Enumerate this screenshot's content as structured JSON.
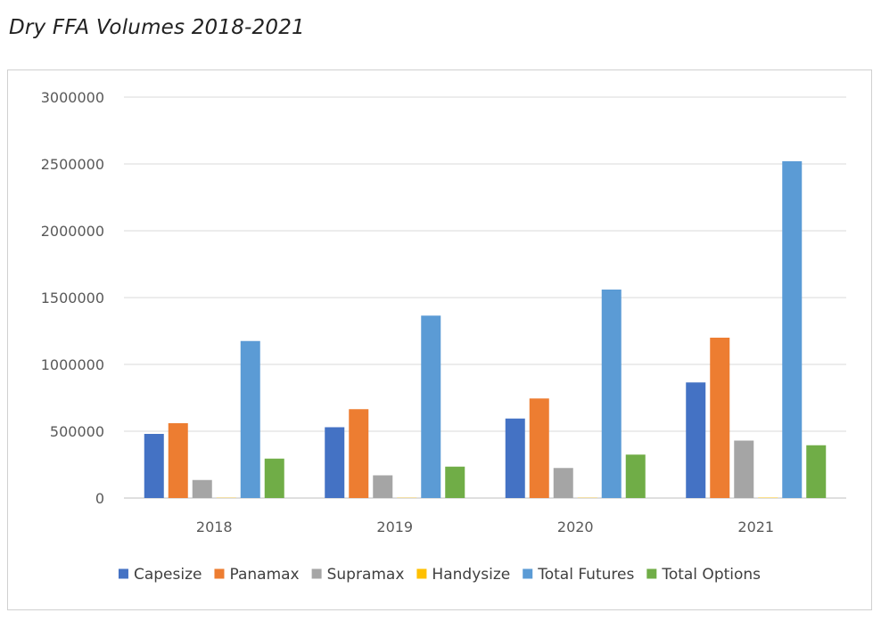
{
  "page": {
    "title": "Dry FFA Volumes 2018-2021"
  },
  "chart_data": {
    "type": "bar",
    "title": "",
    "xlabel": "",
    "ylabel": "",
    "categories": [
      "2018",
      "2019",
      "2020",
      "2021"
    ],
    "ylim": [
      0,
      3000000
    ],
    "yticks": [
      0,
      500000,
      1000000,
      1500000,
      2000000,
      2500000,
      3000000
    ],
    "grid": true,
    "legend_position": "bottom",
    "series": [
      {
        "name": "Capesize",
        "color": "#4472C4",
        "values": [
          480000,
          530000,
          595000,
          865000
        ]
      },
      {
        "name": "Panamax",
        "color": "#ED7D31",
        "values": [
          560000,
          665000,
          745000,
          1200000
        ]
      },
      {
        "name": "Supramax",
        "color": "#A5A5A5",
        "values": [
          135000,
          170000,
          225000,
          430000
        ]
      },
      {
        "name": "Handysize",
        "color": "#FFC000",
        "values": [
          2000,
          2000,
          2000,
          3000
        ]
      },
      {
        "name": "Total Futures",
        "color": "#5B9BD5",
        "values": [
          1175000,
          1365000,
          1560000,
          2520000
        ]
      },
      {
        "name": "Total Options",
        "color": "#70AD47",
        "values": [
          295000,
          235000,
          325000,
          395000
        ]
      }
    ]
  }
}
